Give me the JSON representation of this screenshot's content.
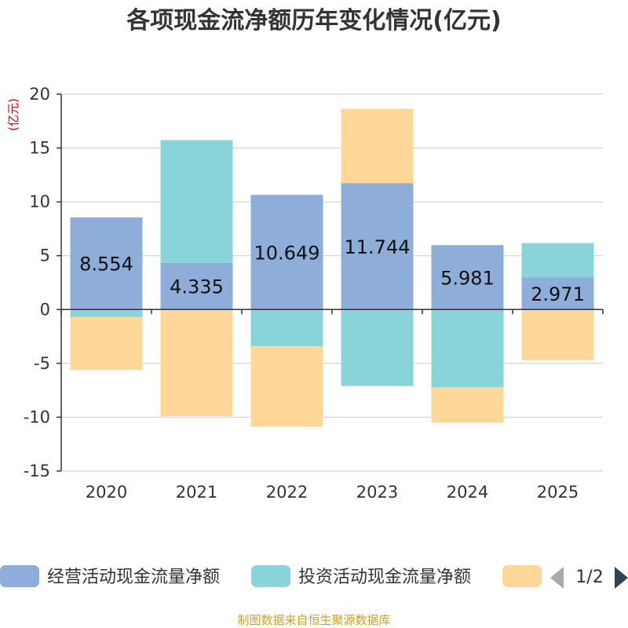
{
  "chart_data": {
    "type": "bar",
    "stacked": true,
    "title": "各项现金流净额历年变化情况(亿元)",
    "ylabel": "(亿元)",
    "categories": [
      "2020",
      "2021",
      "2022",
      "2023",
      "2024",
      "2025"
    ],
    "ylim": [
      -15,
      20
    ],
    "yticks": [
      20,
      15,
      10,
      5,
      0,
      -5,
      -10,
      -15
    ],
    "grid": true,
    "legend_position": "bottom",
    "series": [
      {
        "name": "经营活动现金流量净额",
        "color": "#8eadd9",
        "values": [
          8.554,
          4.335,
          10.649,
          11.744,
          5.981,
          2.971
        ],
        "labels": [
          "8.554",
          "4.335",
          "10.649",
          "11.744",
          "5.981",
          "2.971"
        ]
      },
      {
        "name": "投资活动现金流量净额",
        "color": "#88d4d8",
        "values": [
          -0.7,
          11.4,
          -3.4,
          -7.1,
          -7.2,
          3.2
        ]
      },
      {
        "name": "",
        "color": "#ffd899",
        "values": [
          -4.9,
          -9.9,
          -7.5,
          6.9,
          -3.3,
          -4.7
        ]
      }
    ]
  },
  "legend": {
    "page": "1/2"
  },
  "source": {
    "text": "制图数据来自恒生聚源数据库",
    "color": "#c9a227"
  },
  "colors": {
    "unit": "#cc0000",
    "axis": "#333333",
    "grid": "#cccccc"
  }
}
